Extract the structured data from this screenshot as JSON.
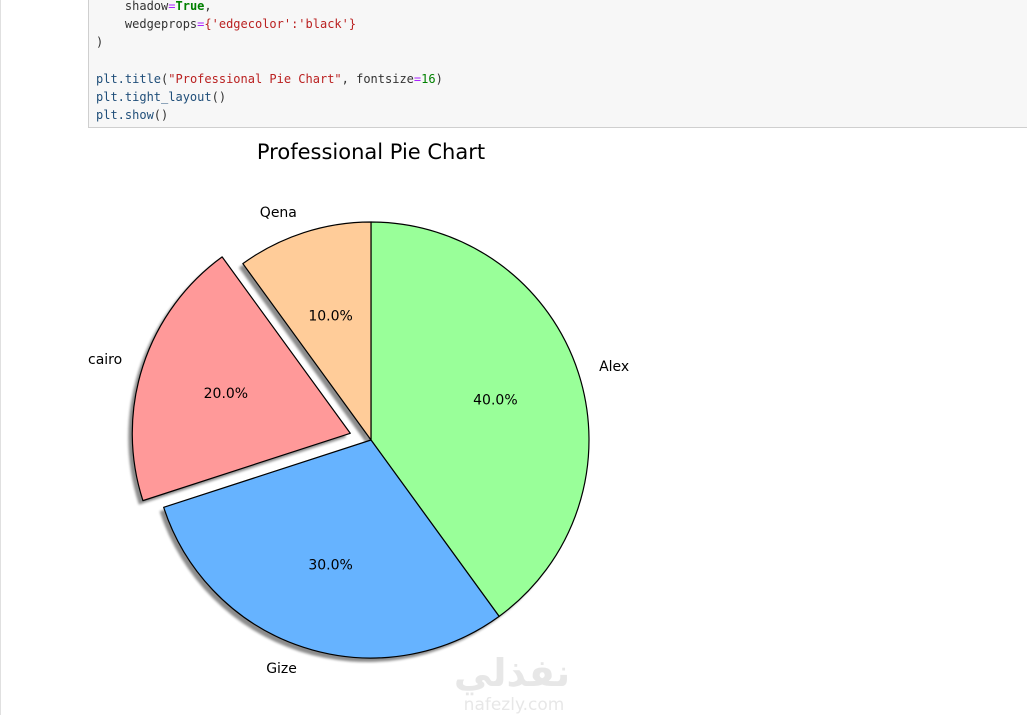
{
  "code": {
    "lines": [
      {
        "indent": "    ",
        "key": "shadow",
        "value": "True",
        "tail": ","
      },
      {
        "indent": "    ",
        "key": "wedgeprops",
        "value": "{'edgecolor':'black'}",
        "tail": ""
      },
      {
        "text": ")"
      },
      {
        "text": ""
      },
      {
        "text": "plt.title(\"Professional Pie Chart\", fontsize=16)"
      },
      {
        "text": "plt.tight_layout()"
      },
      {
        "text": "plt.show()"
      }
    ]
  },
  "chart_data": {
    "type": "pie",
    "title": "Professional Pie Chart",
    "labels": [
      "Alex",
      "Gize",
      "cairo",
      "Qena"
    ],
    "values": [
      40,
      30,
      20,
      10
    ],
    "autopct_labels": [
      "40.0%",
      "30.0%",
      "20.0%",
      "10.0%"
    ],
    "colors": [
      "#99ff99",
      "#66b3ff",
      "#ff9999",
      "#ffcc99"
    ],
    "explode": [
      0,
      0,
      0.1,
      0
    ],
    "startangle_deg": 90,
    "counterclock": false,
    "shadow": true,
    "edgecolor": "#000000"
  },
  "watermark": {
    "arabic": "نفذلي",
    "latin": "nafezly.com"
  }
}
